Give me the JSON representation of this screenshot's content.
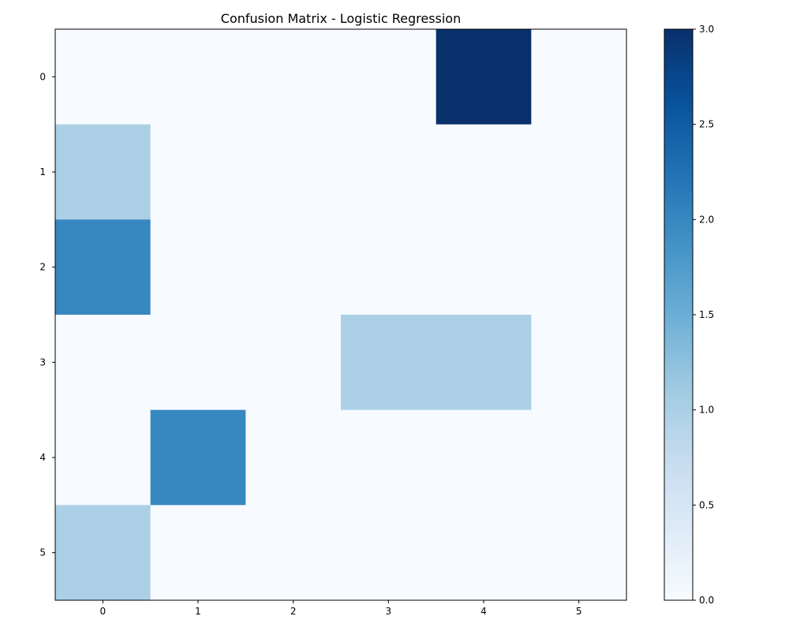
{
  "chart_data": {
    "type": "heatmap",
    "title": "Confusion Matrix - Logistic Regression",
    "xlabel": "",
    "ylabel": "",
    "x_categories": [
      "0",
      "1",
      "2",
      "3",
      "4",
      "5"
    ],
    "y_categories": [
      "0",
      "1",
      "2",
      "3",
      "4",
      "5"
    ],
    "matrix": [
      [
        0,
        0,
        0,
        0,
        3,
        0
      ],
      [
        1,
        0,
        0,
        0,
        0,
        0
      ],
      [
        2,
        0,
        0,
        0,
        0,
        0
      ],
      [
        0,
        0,
        0,
        1,
        1,
        0
      ],
      [
        0,
        2,
        0,
        0,
        0,
        0
      ],
      [
        1,
        0,
        0,
        0,
        0,
        0
      ]
    ],
    "colormap": "Blues",
    "colorbar": {
      "range": [
        0,
        3
      ],
      "ticks": [
        0,
        0.5,
        1,
        1.5,
        2,
        2.5,
        3
      ],
      "tick_labels": [
        "0.0",
        "0.5",
        "1.0",
        "1.5",
        "2.0",
        "2.5",
        "3.0"
      ]
    },
    "grid": false,
    "colors": {
      "low": "#f7fbff",
      "high": "#08306b"
    }
  }
}
